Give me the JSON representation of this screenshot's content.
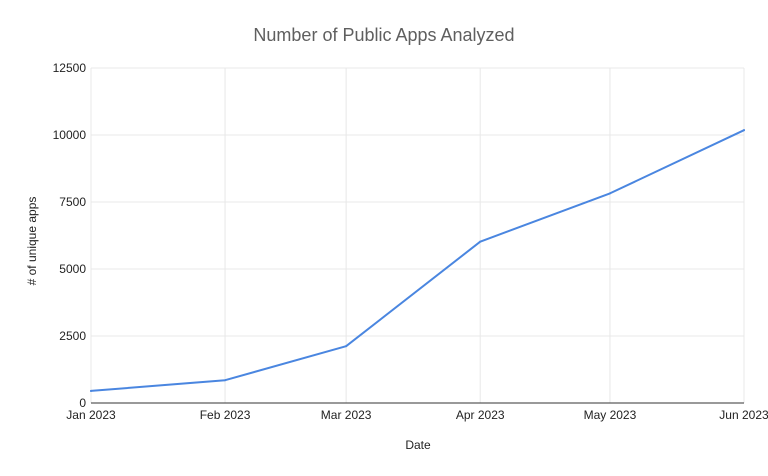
{
  "chart_data": {
    "type": "line",
    "title": "Number of Public Apps Analyzed",
    "xlabel": "Date",
    "ylabel": "# of unique apps",
    "categories": [
      "Jan 2023",
      "Feb 2023",
      "Mar 2023",
      "Apr 2023",
      "May 2023",
      "Jun 2023"
    ],
    "x": [
      "2023-01-01",
      "2023-02-01",
      "2023-03-01",
      "2023-04-01",
      "2023-05-01",
      "2023-06-01"
    ],
    "series": [
      {
        "values": [
          450,
          850,
          2120,
          6020,
          7820,
          10180
        ],
        "color": "#4a86e0"
      }
    ],
    "ylim": [
      0,
      12500
    ],
    "yticks": [
      "0",
      "2500",
      "5000",
      "7500",
      "10000",
      "12500"
    ],
    "grid": true,
    "legend": "none"
  }
}
